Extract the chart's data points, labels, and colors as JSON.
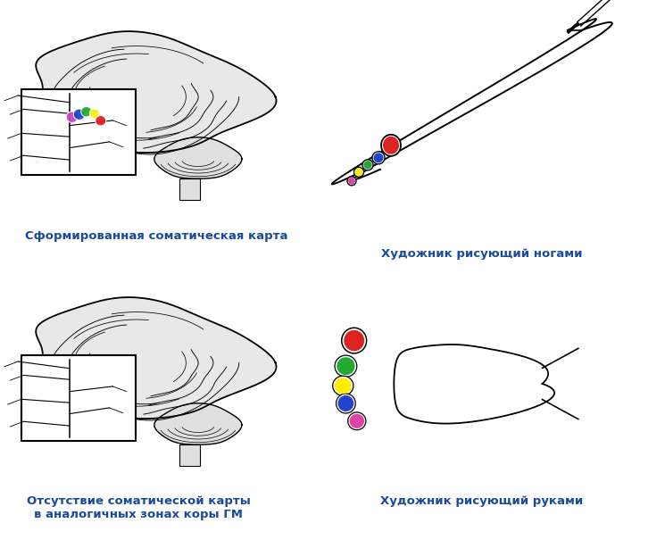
{
  "bg_color": "#ffffff",
  "text_color": "#1a5276",
  "label1": "Сформированная соматическая карта",
  "label2": "Художник рисующий ногами",
  "label3": "Отсутствие соматической карты\nв аналогичных зонах коры ГМ",
  "label4": "Художник рисующий руками",
  "brain_dot_colors_top": [
    "#cc44bb",
    "#2244cc",
    "#22aa33",
    "#ffee00",
    "#dd2222"
  ],
  "toe_colors_foot1": [
    "#dd2222",
    "#2244cc",
    "#22aa33",
    "#ffee00",
    "#dd44aa"
  ],
  "toe_colors_foot2": [
    "#dd2222",
    "#22aa33",
    "#ffee00",
    "#2244cc",
    "#dd44aa"
  ],
  "font_size_label": 9.5,
  "label_color": "#1a4a9a"
}
